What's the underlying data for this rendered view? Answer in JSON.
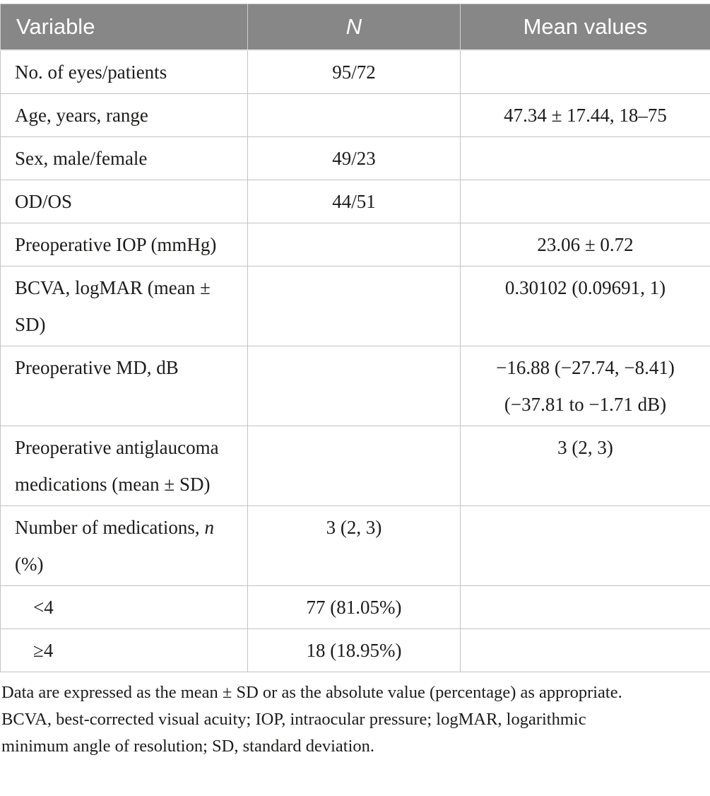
{
  "table": {
    "columns": [
      {
        "label": "Variable"
      },
      {
        "label": "N"
      },
      {
        "label": "Mean values"
      }
    ],
    "rows": [
      {
        "variable": "No. of eyes/patients",
        "n": "95/72",
        "mean": ""
      },
      {
        "variable": "Age, years, range",
        "n": "",
        "mean": "47.34 ± 17.44, 18–75"
      },
      {
        "variable": "Sex, male/female",
        "n": "49/23",
        "mean": ""
      },
      {
        "variable": "OD/OS",
        "n": "44/51",
        "mean": ""
      },
      {
        "variable": "Preoperative IOP (mmHg)",
        "n": "",
        "mean": "23.06 ± 0.72"
      },
      {
        "variable": "BCVA, logMAR (mean ± SD)",
        "n": "",
        "mean": "0.30102 (0.09691, 1)"
      },
      {
        "variable": "Preoperative MD, dB",
        "n": "",
        "mean": "−16.88 (−27.74, −8.41)\n(−37.81 to −1.71 dB)"
      },
      {
        "variable": "Preoperative antiglaucoma medications (mean ± SD)",
        "n": "",
        "mean": "3 (2, 3)"
      },
      {
        "variable": "Number of medications, *n* (%)",
        "n": "3 (2, 3)",
        "mean": ""
      },
      {
        "variable": "<4",
        "n": "77 (81.05%)",
        "mean": "",
        "indent": true
      },
      {
        "variable": "≥4",
        "n": "18 (18.95%)",
        "mean": "",
        "indent": true
      }
    ],
    "footnote": "Data are expressed as the mean ± SD or as the absolute value (percentage) as appropriate.\nBCVA, best-corrected visual acuity; IOP, intraocular pressure; logMAR, logarithmic\nminimum angle of resolution; SD, standard deviation."
  }
}
